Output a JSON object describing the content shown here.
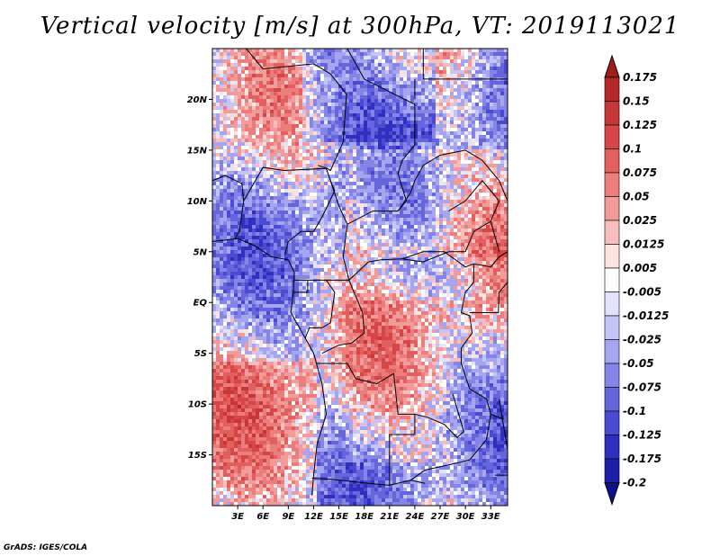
{
  "title": "Vertical velocity [m/s] at 300hPa, VT: 2019113021",
  "footer": "GrADS: IGES/COLA",
  "map": {
    "variable": "Vertical velocity",
    "units": "m/s",
    "level": "300hPa",
    "valid_time": "2019113021",
    "lon_range": [
      0,
      35
    ],
    "lat_range": [
      -20,
      25
    ],
    "lat_labels": [
      {
        "lat": 20,
        "text": "20N"
      },
      {
        "lat": 15,
        "text": "15N"
      },
      {
        "lat": 10,
        "text": "10N"
      },
      {
        "lat": 5,
        "text": "5N"
      },
      {
        "lat": 0,
        "text": "EQ"
      },
      {
        "lat": -5,
        "text": "5S"
      },
      {
        "lat": -10,
        "text": "10S"
      },
      {
        "lat": -15,
        "text": "15S"
      }
    ],
    "lon_labels": [
      {
        "lon": 3,
        "text": "3E"
      },
      {
        "lon": 6,
        "text": "6E"
      },
      {
        "lon": 9,
        "text": "9E"
      },
      {
        "lon": 12,
        "text": "12E"
      },
      {
        "lon": 15,
        "text": "15E"
      },
      {
        "lon": 18,
        "text": "18E"
      },
      {
        "lon": 21,
        "text": "21E"
      },
      {
        "lon": 24,
        "text": "24E"
      },
      {
        "lon": 27,
        "text": "27E"
      },
      {
        "lon": 30,
        "text": "30E"
      },
      {
        "lon": 33,
        "text": "33E"
      }
    ]
  },
  "colorbar": {
    "levels": [
      "0.175",
      "0.15",
      "0.125",
      "0.1",
      "0.075",
      "0.05",
      "0.025",
      "0.0125",
      "0.005",
      "-0.005",
      "-0.0125",
      "-0.025",
      "-0.05",
      "-0.075",
      "-0.1",
      "-0.125",
      "-0.175",
      "-0.2"
    ],
    "colors": [
      "#a01e1e",
      "#b42828",
      "#c83737",
      "#d74646",
      "#e15f5f",
      "#eb7d7d",
      "#f29b9b",
      "#f8bebe",
      "#fde2e2",
      "#ffffff",
      "#e2e2fd",
      "#c4c4f8",
      "#a5a5f0",
      "#8585e8",
      "#6666dc",
      "#4a4ad2",
      "#3030c0",
      "#1e1ea8",
      "#10108c"
    ]
  }
}
